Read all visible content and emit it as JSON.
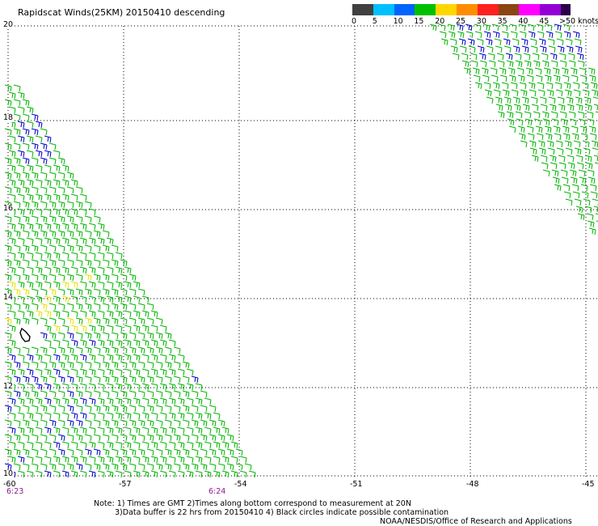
{
  "title": "Rapidscat Winds(25KM) 20150410 descending",
  "scale": {
    "segments": [
      {
        "label": "0",
        "color": "#404040"
      },
      {
        "label": "5",
        "color": "#00bfff"
      },
      {
        "label": "10",
        "color": "#0064ff"
      },
      {
        "label": "15",
        "color": "#00c000"
      },
      {
        "label": "20",
        "color": "#ffd700"
      },
      {
        "label": "25",
        "color": "#ff8c00"
      },
      {
        "label": "30",
        "color": "#ff2020"
      },
      {
        "label": "35",
        "color": "#8b4513"
      },
      {
        "label": "40",
        "color": "#ff00ff"
      },
      {
        "label": "45",
        "color": "#9400d3"
      }
    ],
    "last_label": ">50",
    "unit": "knots",
    "end_color": "#2a004a"
  },
  "latitudes": [
    "20",
    "18",
    "16",
    "14",
    "12",
    "10"
  ],
  "longitudes": [
    "-60",
    "-57",
    "-54",
    "-51",
    "-48",
    "-45"
  ],
  "times": [
    "6:23",
    "6:24"
  ],
  "notes": {
    "line1": "Note: 1) Times are GMT 2)Times along bottom correspond to measurement at 20N",
    "line2": "3)Data buffer is 22 hrs from 20150410 4) Black circles indicate possible contamination",
    "line3": "NOAA/NESDIS/Office of Research and Applications"
  },
  "colors": {
    "grid": "#000000",
    "barb_green": "#00b400",
    "barb_blue": "#0000c8",
    "barb_yellow": "#e8e000",
    "time_label": "#8b1a8b",
    "island": "#000000"
  }
}
